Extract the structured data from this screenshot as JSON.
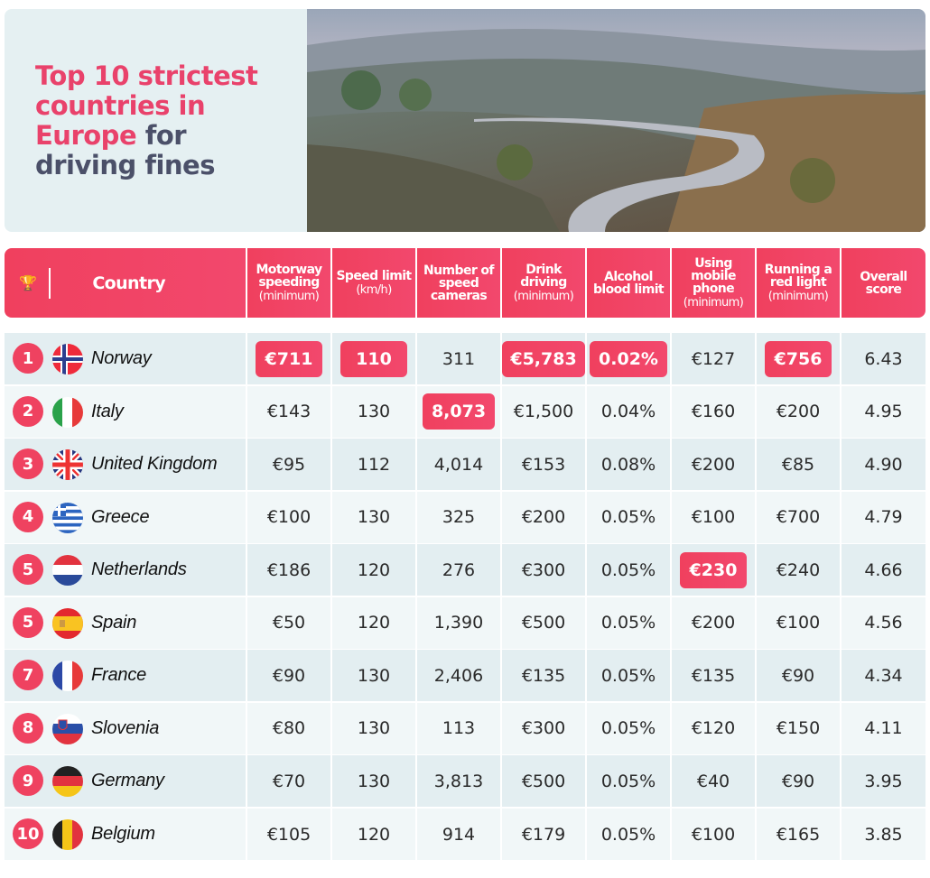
{
  "title": {
    "line1": "Top 10 strictest",
    "line2": "countries in",
    "line3_pink": "Europe",
    "line3_dark": " for",
    "line4": "driving fines"
  },
  "colors": {
    "accent": "#f0405e",
    "title_dark": "#4b5069",
    "row_odd": "#e3eef1",
    "row_even": "#f1f7f8"
  },
  "header": {
    "icon": "trophy-icon",
    "country": "Country",
    "columns": [
      {
        "main": "Motorway speeding",
        "sub": "(minimum)"
      },
      {
        "main": "Speed limit",
        "sub": "(km/h)"
      },
      {
        "main": "Number of speed cameras",
        "sub": ""
      },
      {
        "main": "Drink driving",
        "sub": "(minimum)"
      },
      {
        "main": "Alcohol blood limit",
        "sub": ""
      },
      {
        "main": "Using mobile phone",
        "sub": "(minimum)"
      },
      {
        "main": "Running a red light",
        "sub": "(minimum)"
      },
      {
        "main": "Overall score",
        "sub": ""
      }
    ]
  },
  "rows": [
    {
      "rank": "1",
      "country": "Norway",
      "flag": "norway",
      "values": [
        "€711",
        "110",
        "311",
        "€5,783",
        "0.02%",
        "€127",
        "€756",
        "6.43"
      ],
      "highlight": [
        0,
        1,
        3,
        4,
        6
      ]
    },
    {
      "rank": "2",
      "country": "Italy",
      "flag": "italy",
      "values": [
        "€143",
        "130",
        "8,073",
        "€1,500",
        "0.04%",
        "€160",
        "€200",
        "4.95"
      ],
      "highlight": [
        2
      ]
    },
    {
      "rank": "3",
      "country": "United Kingdom",
      "flag": "uk",
      "values": [
        "€95",
        "112",
        "4,014",
        "€153",
        "0.08%",
        "€200",
        "€85",
        "4.90"
      ],
      "highlight": []
    },
    {
      "rank": "4",
      "country": "Greece",
      "flag": "greece",
      "values": [
        "€100",
        "130",
        "325",
        "€200",
        "0.05%",
        "€100",
        "€700",
        "4.79"
      ],
      "highlight": []
    },
    {
      "rank": "5",
      "country": "Netherlands",
      "flag": "netherlands",
      "values": [
        "€186",
        "120",
        "276",
        "€300",
        "0.05%",
        "€230",
        "€240",
        "4.66"
      ],
      "highlight": [
        5
      ]
    },
    {
      "rank": "5",
      "country": "Spain",
      "flag": "spain",
      "values": [
        "€50",
        "120",
        "1,390",
        "€500",
        "0.05%",
        "€200",
        "€100",
        "4.56"
      ],
      "highlight": []
    },
    {
      "rank": "7",
      "country": "France",
      "flag": "france",
      "values": [
        "€90",
        "130",
        "2,406",
        "€135",
        "0.05%",
        "€135",
        "€90",
        "4.34"
      ],
      "highlight": []
    },
    {
      "rank": "8",
      "country": "Slovenia",
      "flag": "slovenia",
      "values": [
        "€80",
        "130",
        "113",
        "€300",
        "0.05%",
        "€120",
        "€150",
        "4.11"
      ],
      "highlight": []
    },
    {
      "rank": "9",
      "country": "Germany",
      "flag": "germany",
      "values": [
        "€70",
        "130",
        "3,813",
        "€500",
        "0.05%",
        "€40",
        "€90",
        "3.95"
      ],
      "highlight": []
    },
    {
      "rank": "10",
      "country": "Belgium",
      "flag": "belgium",
      "values": [
        "€105",
        "120",
        "914",
        "€179",
        "0.05%",
        "€100",
        "€165",
        "3.85"
      ],
      "highlight": []
    }
  ]
}
